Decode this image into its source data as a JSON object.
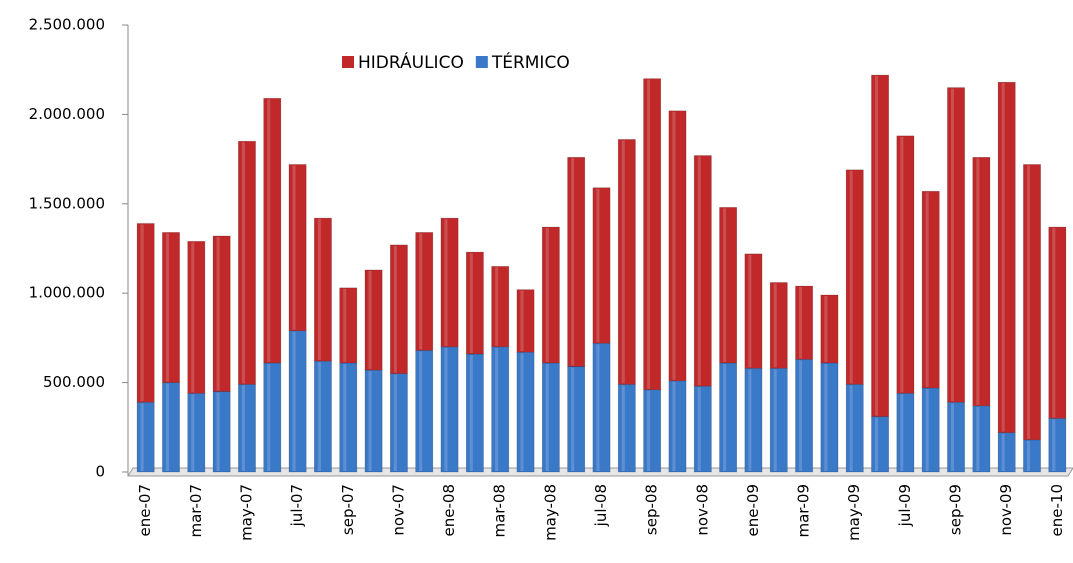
{
  "chart_data": {
    "type": "stacked_bar",
    "categories": [
      "ene-07",
      null,
      "mar-07",
      null,
      "may-07",
      null,
      "jul-07",
      null,
      "sep-07",
      null,
      "nov-07",
      null,
      "ene-08",
      null,
      "mar-08",
      null,
      "may-08",
      null,
      "jul-08",
      null,
      "sep-08",
      null,
      "nov-08",
      null,
      "ene-09",
      null,
      "mar-09",
      null,
      "may-09",
      null,
      "jul-09",
      null,
      "sep-09",
      null,
      "nov-09",
      null,
      "ene-10"
    ],
    "series": [
      {
        "name": "TÉRMICO",
        "color": "#3a78c8",
        "values": [
          390000,
          500000,
          440000,
          450000,
          490000,
          610000,
          790000,
          620000,
          610000,
          570000,
          550000,
          680000,
          700000,
          660000,
          700000,
          670000,
          610000,
          590000,
          720000,
          490000,
          460000,
          510000,
          480000,
          610000,
          580000,
          580000,
          630000,
          610000,
          490000,
          310000,
          440000,
          470000,
          390000,
          370000,
          220000,
          180000,
          300000
        ]
      },
      {
        "name": "HIDRÁULICO",
        "color": "#c0282a",
        "values": [
          1000000,
          840000,
          850000,
          870000,
          1360000,
          1480000,
          930000,
          800000,
          420000,
          560000,
          720000,
          660000,
          720000,
          570000,
          450000,
          350000,
          760000,
          1170000,
          870000,
          1370000,
          1740000,
          1510000,
          1290000,
          870000,
          640000,
          480000,
          410000,
          380000,
          1200000,
          1910000,
          1440000,
          1100000,
          1760000,
          1390000,
          1960000,
          1540000,
          1070000
        ]
      }
    ],
    "ylim": [
      0,
      2500000
    ],
    "yticks": [
      0,
      {
        "value": 500000,
        "label": "500.000"
      },
      {
        "value": 1000000,
        "label": "1.000.000"
      },
      {
        "value": 1500000,
        "label": "1.500.000"
      },
      {
        "value": 2000000,
        "label": "2.000.000"
      },
      {
        "value": 2500000,
        "label": "2.500.000"
      }
    ],
    "legend": "top"
  }
}
